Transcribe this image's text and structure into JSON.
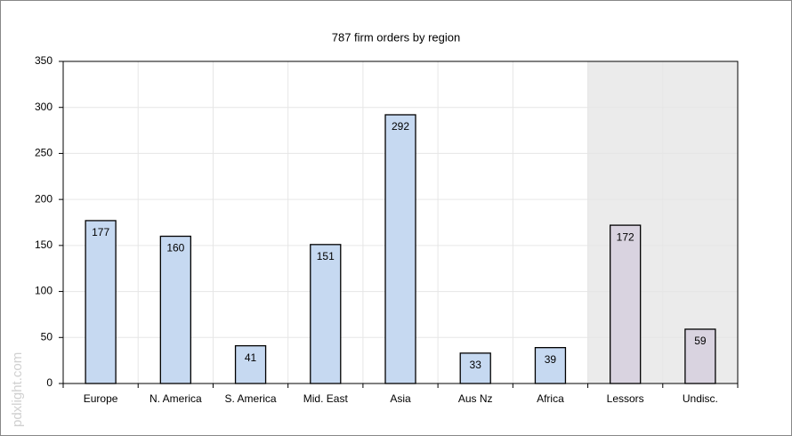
{
  "chart_data": {
    "type": "bar",
    "title": "787 firm orders by region",
    "categories": [
      "Europe",
      "N. America",
      "S. America",
      "Mid. East",
      "Asia",
      "Aus Nz",
      "Africa",
      "Lessors",
      "Undisc."
    ],
    "values": [
      177,
      160,
      41,
      151,
      292,
      33,
      39,
      172,
      59
    ],
    "colors": [
      "#c6d9f1",
      "#c6d9f1",
      "#c6d9f1",
      "#c6d9f1",
      "#c6d9f1",
      "#c6d9f1",
      "#c6d9f1",
      "#d9d3e0",
      "#d9d3e0"
    ],
    "band_colors": [
      "#ffffff",
      "#ffffff",
      "#ffffff",
      "#ffffff",
      "#ffffff",
      "#ffffff",
      "#ffffff",
      "#ebebeb",
      "#ebebeb"
    ],
    "ylim": [
      0,
      350
    ],
    "yticks": [
      0,
      50,
      100,
      150,
      200,
      250,
      300,
      350
    ],
    "grid": true,
    "watermark": "pdxlight.com"
  }
}
